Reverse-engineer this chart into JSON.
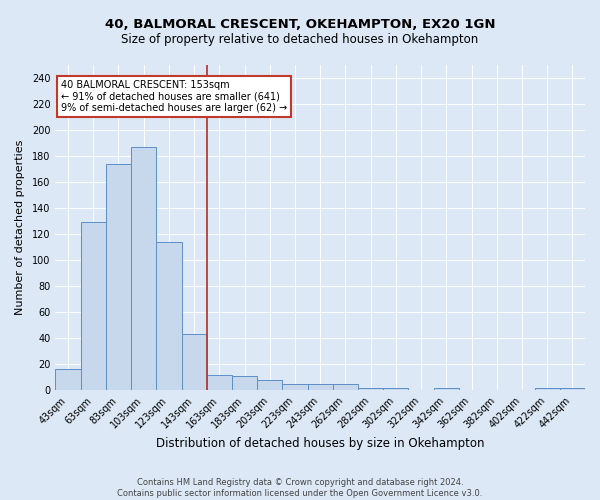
{
  "title1": "40, BALMORAL CRESCENT, OKEHAMPTON, EX20 1GN",
  "title2": "Size of property relative to detached houses in Okehampton",
  "xlabel": "Distribution of detached houses by size in Okehampton",
  "ylabel": "Number of detached properties",
  "footer1": "Contains HM Land Registry data © Crown copyright and database right 2024.",
  "footer2": "Contains public sector information licensed under the Open Government Licence v3.0.",
  "annotation_line1": "40 BALMORAL CRESCENT: 153sqm",
  "annotation_line2": "← 91% of detached houses are smaller (641)",
  "annotation_line3": "9% of semi-detached houses are larger (62) →",
  "bar_color": "#c8d8ec",
  "bar_edge_color": "#5b8fc9",
  "vline_color": "#c0392b",
  "annotation_box_color": "#ffffff",
  "annotation_box_edge": "#c0392b",
  "background_color": "#dce8f5",
  "axes_background": "#dce8f5",
  "categories": [
    "43sqm",
    "63sqm",
    "83sqm",
    "103sqm",
    "123sqm",
    "143sqm",
    "163sqm",
    "183sqm",
    "203sqm",
    "223sqm",
    "243sqm",
    "262sqm",
    "282sqm",
    "302sqm",
    "322sqm",
    "342sqm",
    "362sqm",
    "382sqm",
    "402sqm",
    "422sqm",
    "442sqm"
  ],
  "values": [
    16,
    129,
    174,
    187,
    114,
    43,
    12,
    11,
    8,
    5,
    5,
    5,
    2,
    2,
    0,
    2,
    0,
    0,
    0,
    2,
    2
  ],
  "ylim": [
    0,
    250
  ],
  "yticks": [
    0,
    20,
    40,
    60,
    80,
    100,
    120,
    140,
    160,
    180,
    200,
    220,
    240
  ],
  "vline_x": 5.5,
  "title1_fontsize": 9.5,
  "title2_fontsize": 8.5,
  "xlabel_fontsize": 8.5,
  "ylabel_fontsize": 8.0,
  "tick_fontsize": 7.0,
  "annotation_fontsize": 7.0,
  "footer_fontsize": 6.0
}
